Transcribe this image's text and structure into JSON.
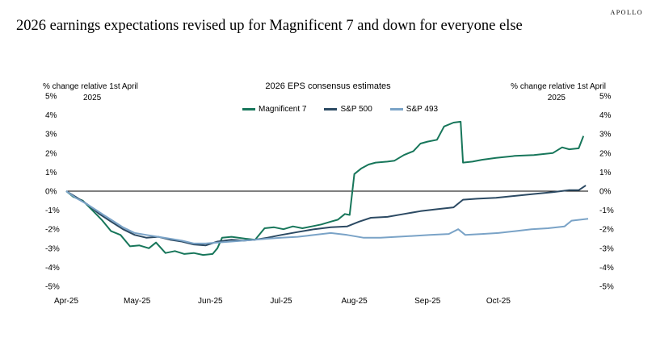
{
  "brand": "APOLLO",
  "headline": "2026 earnings expectations revised up for Magnificent 7 and down for everyone else",
  "chart_data": {
    "type": "line",
    "title": "2026 EPS consensus estimates",
    "ylabel_left": [
      "% change relative 1st April",
      "2025"
    ],
    "ylabel_right": [
      "% change relative 1st April",
      "2025"
    ],
    "ylim": [
      -5,
      5
    ],
    "y_ticks": [
      "5%",
      "4%",
      "3%",
      "2%",
      "1%",
      "0%",
      "-1%",
      "-2%",
      "-3%",
      "-4%",
      "-5%"
    ],
    "x_ticks": [
      "Apr-25",
      "May-25",
      "Jun-25",
      "Jul-25",
      "Aug-25",
      "Sep-25",
      "Oct-25"
    ],
    "x_range": [
      "2025-04-01",
      "2025-11-08"
    ],
    "grid": false,
    "legend": "top-center",
    "series": [
      {
        "name": "Magnificent 7",
        "color": "#17765a",
        "points": [
          [
            "2025-04-01",
            0.0
          ],
          [
            "2025-04-04",
            -0.3
          ],
          [
            "2025-04-08",
            -0.5
          ],
          [
            "2025-04-12",
            -1.0
          ],
          [
            "2025-04-16",
            -1.5
          ],
          [
            "2025-04-20",
            -2.1
          ],
          [
            "2025-04-24",
            -2.3
          ],
          [
            "2025-04-28",
            -2.9
          ],
          [
            "2025-05-02",
            -2.85
          ],
          [
            "2025-05-06",
            -3.0
          ],
          [
            "2025-05-09",
            -2.7
          ],
          [
            "2025-05-13",
            -3.25
          ],
          [
            "2025-05-17",
            -3.15
          ],
          [
            "2025-05-21",
            -3.3
          ],
          [
            "2025-05-25",
            -3.25
          ],
          [
            "2025-05-29",
            -3.35
          ],
          [
            "2025-06-02",
            -3.3
          ],
          [
            "2025-06-04",
            -3.0
          ],
          [
            "2025-06-06",
            -2.45
          ],
          [
            "2025-06-10",
            -2.4
          ],
          [
            "2025-06-16",
            -2.5
          ],
          [
            "2025-06-20",
            -2.55
          ],
          [
            "2025-06-24",
            -1.95
          ],
          [
            "2025-06-28",
            -1.9
          ],
          [
            "2025-07-02",
            -2.0
          ],
          [
            "2025-07-06",
            -1.85
          ],
          [
            "2025-07-10",
            -1.95
          ],
          [
            "2025-07-14",
            -1.85
          ],
          [
            "2025-07-18",
            -1.75
          ],
          [
            "2025-07-22",
            -1.6
          ],
          [
            "2025-07-25",
            -1.5
          ],
          [
            "2025-07-28",
            -1.2
          ],
          [
            "2025-07-30",
            -1.25
          ],
          [
            "2025-08-01",
            0.9
          ],
          [
            "2025-08-04",
            1.2
          ],
          [
            "2025-08-07",
            1.4
          ],
          [
            "2025-08-10",
            1.5
          ],
          [
            "2025-08-15",
            1.55
          ],
          [
            "2025-08-18",
            1.6
          ],
          [
            "2025-08-22",
            1.9
          ],
          [
            "2025-08-26",
            2.1
          ],
          [
            "2025-08-29",
            2.5
          ],
          [
            "2025-09-01",
            2.6
          ],
          [
            "2025-09-05",
            2.7
          ],
          [
            "2025-09-08",
            3.4
          ],
          [
            "2025-09-12",
            3.6
          ],
          [
            "2025-09-15",
            3.65
          ],
          [
            "2025-09-16",
            1.5
          ],
          [
            "2025-09-20",
            1.55
          ],
          [
            "2025-09-24",
            1.65
          ],
          [
            "2025-09-30",
            1.75
          ],
          [
            "2025-10-08",
            1.85
          ],
          [
            "2025-10-16",
            1.9
          ],
          [
            "2025-10-24",
            2.0
          ],
          [
            "2025-10-28",
            2.3
          ],
          [
            "2025-10-31",
            2.2
          ],
          [
            "2025-11-04",
            2.25
          ],
          [
            "2025-11-06",
            2.9
          ]
        ]
      },
      {
        "name": "S&P 500",
        "color": "#2c4a63",
        "points": [
          [
            "2025-04-01",
            0.0
          ],
          [
            "2025-04-05",
            -0.3
          ],
          [
            "2025-04-10",
            -0.7
          ],
          [
            "2025-04-15",
            -1.2
          ],
          [
            "2025-04-20",
            -1.6
          ],
          [
            "2025-04-25",
            -2.0
          ],
          [
            "2025-04-30",
            -2.3
          ],
          [
            "2025-05-05",
            -2.45
          ],
          [
            "2025-05-10",
            -2.4
          ],
          [
            "2025-05-15",
            -2.55
          ],
          [
            "2025-05-20",
            -2.65
          ],
          [
            "2025-05-25",
            -2.8
          ],
          [
            "2025-05-30",
            -2.85
          ],
          [
            "2025-06-04",
            -2.65
          ],
          [
            "2025-06-10",
            -2.55
          ],
          [
            "2025-06-15",
            -2.6
          ],
          [
            "2025-06-20",
            -2.55
          ],
          [
            "2025-06-25",
            -2.45
          ],
          [
            "2025-07-01",
            -2.3
          ],
          [
            "2025-07-08",
            -2.15
          ],
          [
            "2025-07-15",
            -2.0
          ],
          [
            "2025-07-22",
            -1.9
          ],
          [
            "2025-07-29",
            -1.85
          ],
          [
            "2025-08-03",
            -1.6
          ],
          [
            "2025-08-08",
            -1.4
          ],
          [
            "2025-08-15",
            -1.35
          ],
          [
            "2025-08-22",
            -1.2
          ],
          [
            "2025-08-29",
            -1.05
          ],
          [
            "2025-09-05",
            -0.95
          ],
          [
            "2025-09-12",
            -0.85
          ],
          [
            "2025-09-16",
            -0.45
          ],
          [
            "2025-09-22",
            -0.4
          ],
          [
            "2025-09-30",
            -0.35
          ],
          [
            "2025-10-08",
            -0.25
          ],
          [
            "2025-10-16",
            -0.15
          ],
          [
            "2025-10-24",
            -0.05
          ],
          [
            "2025-10-31",
            0.05
          ],
          [
            "2025-11-04",
            0.05
          ],
          [
            "2025-11-07",
            0.3
          ]
        ]
      },
      {
        "name": "S&P 493",
        "color": "#7aa3c7",
        "points": [
          [
            "2025-04-01",
            0.0
          ],
          [
            "2025-04-05",
            -0.35
          ],
          [
            "2025-04-10",
            -0.7
          ],
          [
            "2025-04-15",
            -1.1
          ],
          [
            "2025-04-20",
            -1.5
          ],
          [
            "2025-04-25",
            -1.9
          ],
          [
            "2025-04-30",
            -2.2
          ],
          [
            "2025-05-05",
            -2.3
          ],
          [
            "2025-05-10",
            -2.4
          ],
          [
            "2025-05-15",
            -2.5
          ],
          [
            "2025-05-20",
            -2.6
          ],
          [
            "2025-05-25",
            -2.75
          ],
          [
            "2025-05-30",
            -2.75
          ],
          [
            "2025-06-04",
            -2.7
          ],
          [
            "2025-06-10",
            -2.65
          ],
          [
            "2025-06-15",
            -2.6
          ],
          [
            "2025-06-20",
            -2.55
          ],
          [
            "2025-06-25",
            -2.5
          ],
          [
            "2025-07-01",
            -2.45
          ],
          [
            "2025-07-08",
            -2.4
          ],
          [
            "2025-07-15",
            -2.3
          ],
          [
            "2025-07-22",
            -2.2
          ],
          [
            "2025-07-29",
            -2.3
          ],
          [
            "2025-08-05",
            -2.45
          ],
          [
            "2025-08-12",
            -2.45
          ],
          [
            "2025-08-19",
            -2.4
          ],
          [
            "2025-08-26",
            -2.35
          ],
          [
            "2025-09-02",
            -2.3
          ],
          [
            "2025-09-10",
            -2.25
          ],
          [
            "2025-09-14",
            -2.0
          ],
          [
            "2025-09-17",
            -2.3
          ],
          [
            "2025-09-24",
            -2.25
          ],
          [
            "2025-10-01",
            -2.2
          ],
          [
            "2025-10-08",
            -2.1
          ],
          [
            "2025-10-15",
            -2.0
          ],
          [
            "2025-10-22",
            -1.95
          ],
          [
            "2025-10-29",
            -1.85
          ],
          [
            "2025-11-01",
            -1.55
          ],
          [
            "2025-11-08",
            -1.45
          ]
        ]
      }
    ]
  }
}
